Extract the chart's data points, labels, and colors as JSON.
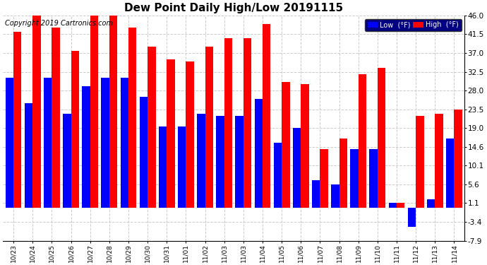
{
  "title": "Dew Point Daily High/Low 20191115",
  "copyright": "Copyright 2019 Cartronics.com",
  "legend_low": "Low  (°F)",
  "legend_high": "High  (°F)",
  "dates": [
    "10/23",
    "10/24",
    "10/25",
    "10/26",
    "10/27",
    "10/28",
    "10/29",
    "10/30",
    "10/31",
    "11/01",
    "11/02",
    "11/03",
    "11/03",
    "11/04",
    "11/05",
    "11/06",
    "11/07",
    "11/08",
    "11/09",
    "11/10",
    "11/11",
    "11/12",
    "11/13",
    "11/14"
  ],
  "high_vals": [
    42.0,
    46.0,
    43.0,
    37.5,
    46.0,
    46.0,
    43.0,
    38.5,
    35.5,
    35.0,
    38.5,
    40.5,
    40.5,
    44.0,
    30.0,
    29.5,
    14.0,
    16.5,
    32.0,
    33.5,
    1.1,
    22.0,
    22.5,
    23.5
  ],
  "low_vals": [
    31.0,
    25.0,
    31.0,
    22.5,
    29.0,
    31.0,
    31.0,
    26.5,
    19.5,
    19.5,
    22.5,
    22.0,
    22.0,
    26.0,
    15.5,
    19.0,
    6.5,
    5.5,
    14.0,
    14.0,
    1.1,
    -4.5,
    2.0,
    16.5
  ],
  "ylim_min": -7.9,
  "ylim_max": 46.0,
  "yticks": [
    -7.9,
    -3.4,
    1.1,
    5.6,
    10.1,
    14.6,
    19.0,
    23.5,
    28.0,
    32.5,
    37.0,
    41.5,
    46.0
  ],
  "bar_color_high": "#ff0000",
  "bar_color_low": "#0000ff",
  "background_color": "#ffffff",
  "grid_color": "#cccccc",
  "title_fontsize": 11,
  "copyright_fontsize": 7
}
